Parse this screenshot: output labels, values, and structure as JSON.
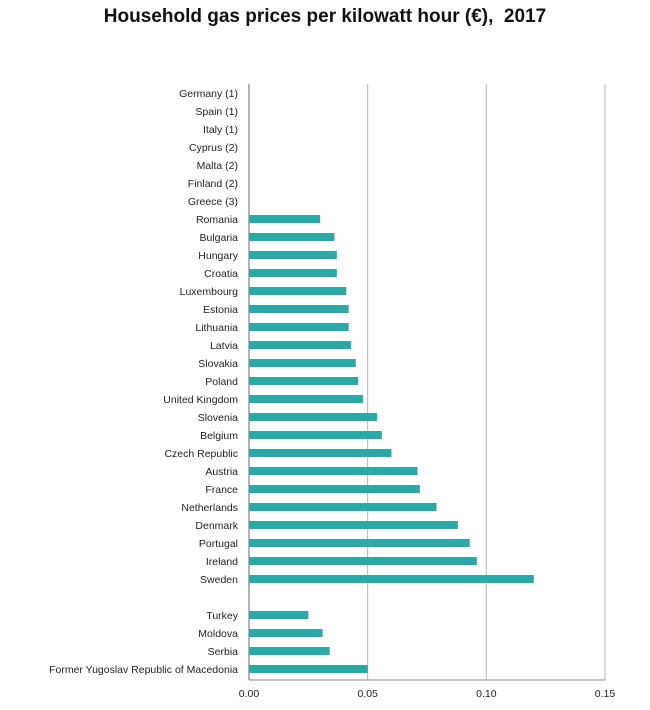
{
  "chart_data": {
    "type": "bar",
    "orientation": "horizontal",
    "title": "Household gas prices per kilowatt hour (€),  2017",
    "xlim": [
      0,
      0.15
    ],
    "ticks": [
      "0.00",
      "0.05",
      "0.10",
      "0.15"
    ],
    "tick_values": [
      0,
      0.05,
      0.1,
      0.15
    ],
    "grid": true,
    "bar_color": "#2aa9a9",
    "categories": [
      "Germany (1)",
      "Spain (1)",
      "Italy (1)",
      "Cyprus (2)",
      "Malta (2)",
      "Finland (2)",
      "Greece (3)",
      "Romania",
      "Bulgaria",
      "Hungary",
      "Croatia",
      "Luxembourg",
      "Estonia",
      "Lithuania",
      "Latvia",
      "Slovakia",
      "Poland",
      "United Kingdom",
      "Slovenia",
      "Belgium",
      "Czech Republic",
      "Austria",
      "France",
      "Netherlands",
      "Denmark",
      "Portugal",
      "Ireland",
      "Sweden",
      "",
      "Turkey",
      "Moldova",
      "Serbia",
      "Former Yugoslav Republic of Macedonia"
    ],
    "values": [
      null,
      null,
      null,
      null,
      null,
      null,
      null,
      0.03,
      0.036,
      0.037,
      0.037,
      0.041,
      0.042,
      0.042,
      0.043,
      0.045,
      0.046,
      0.048,
      0.054,
      0.056,
      0.06,
      0.071,
      0.072,
      0.079,
      0.088,
      0.093,
      0.096,
      0.12,
      null,
      0.025,
      0.031,
      0.034,
      0.05
    ]
  }
}
